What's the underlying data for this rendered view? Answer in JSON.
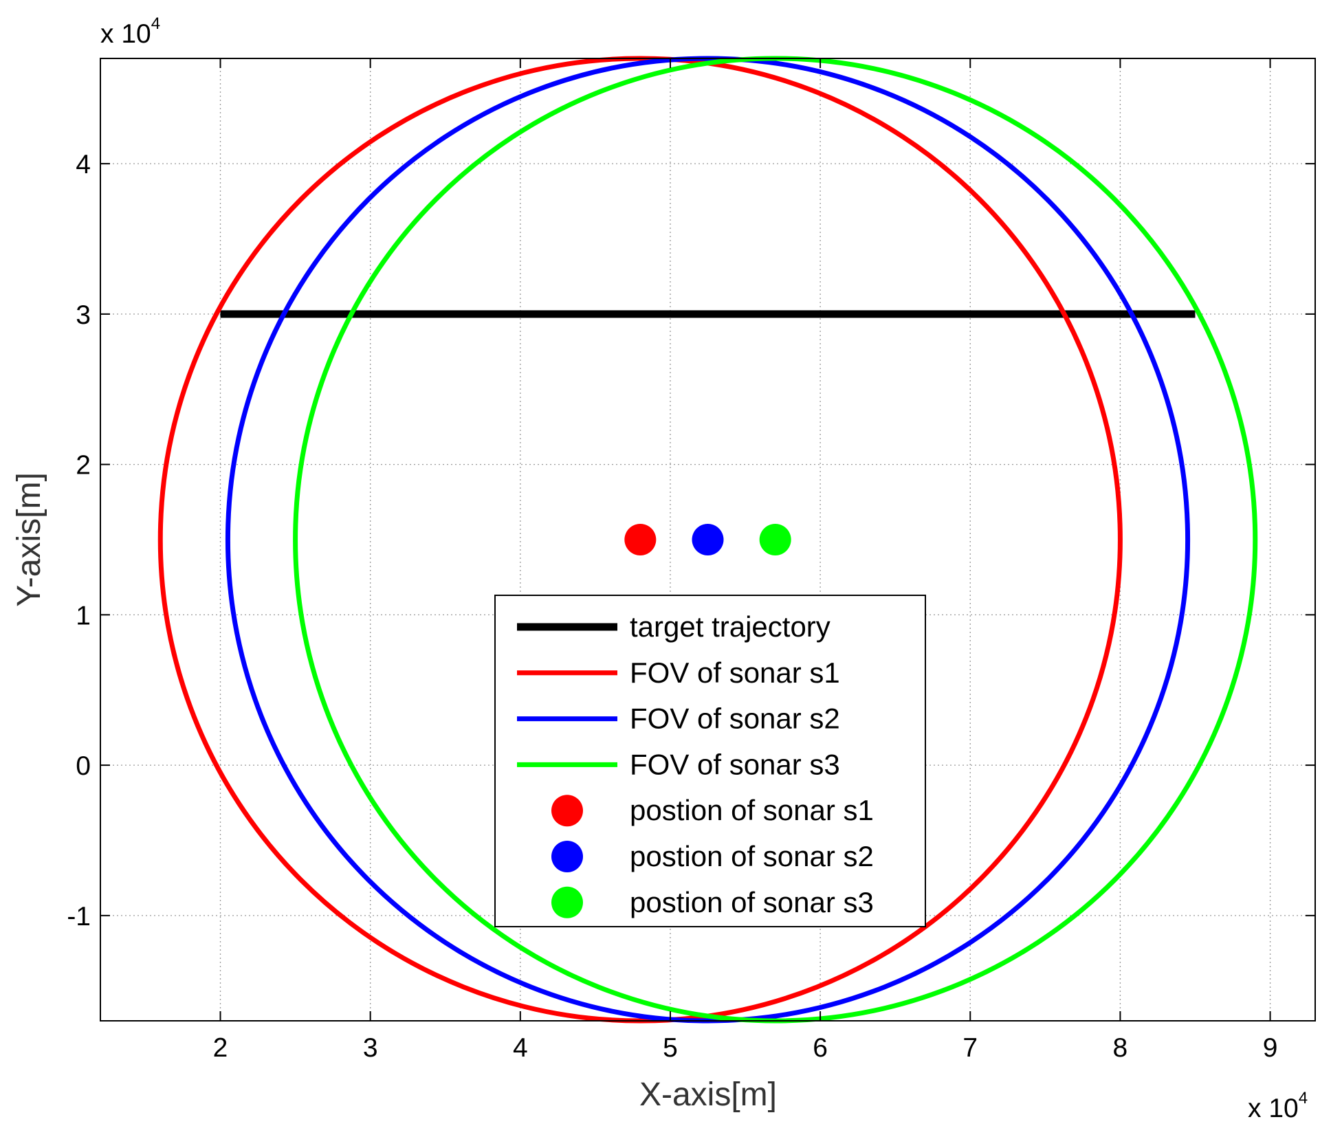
{
  "chart_data": {
    "type": "line",
    "title": "",
    "xlabel": "X-axis[m]",
    "ylabel": "Y-axis[m]",
    "x_multiplier_label": {
      "base": "x 10",
      "exp": "4"
    },
    "y_multiplier_label": {
      "base": "x 10",
      "exp": "4"
    },
    "xlim": [
      1.2,
      9.3
    ],
    "ylim": [
      -1.7,
      4.7
    ],
    "xticks": [
      2,
      3,
      4,
      5,
      6,
      7,
      8,
      9
    ],
    "yticks": [
      -1,
      0,
      1,
      2,
      3,
      4
    ],
    "x_tick_labels": [
      "2",
      "3",
      "4",
      "5",
      "6",
      "7",
      "8",
      "9"
    ],
    "y_tick_labels": [
      "-1",
      "0",
      "1",
      "2",
      "3",
      "4"
    ],
    "grid": true,
    "legend_position": "lower-center",
    "series": [
      {
        "name": "target trajectory",
        "kind": "line",
        "color": "#000000",
        "x": [
          2.0,
          8.5
        ],
        "y": [
          3.0,
          3.0
        ]
      },
      {
        "name": "FOV of sonar s1",
        "kind": "ellipse",
        "color": "#ff0000",
        "center": [
          4.8,
          1.5
        ],
        "radii": [
          3.2,
          3.2
        ]
      },
      {
        "name": "FOV of sonar s2",
        "kind": "ellipse",
        "color": "#0000ff",
        "center": [
          5.25,
          1.5
        ],
        "radii": [
          3.2,
          3.2
        ]
      },
      {
        "name": "FOV of sonar s3",
        "kind": "ellipse",
        "color": "#00ff00",
        "center": [
          5.7,
          1.5
        ],
        "radii": [
          3.2,
          3.2
        ]
      },
      {
        "name": "postion of sonar s1",
        "kind": "marker",
        "color": "#ff0000",
        "x": [
          4.8
        ],
        "y": [
          1.5
        ]
      },
      {
        "name": "postion of sonar s2",
        "kind": "marker",
        "color": "#0000ff",
        "x": [
          5.25
        ],
        "y": [
          1.5
        ]
      },
      {
        "name": "postion of sonar s3",
        "kind": "marker",
        "color": "#00ff00",
        "x": [
          5.7
        ],
        "y": [
          1.5
        ]
      }
    ]
  }
}
